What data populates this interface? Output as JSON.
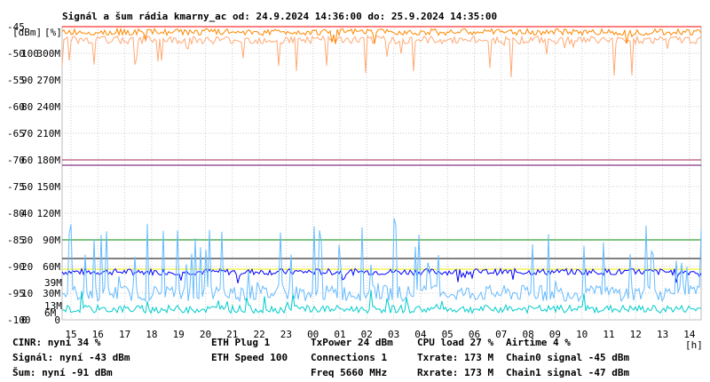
{
  "chart_data": {
    "type": "line",
    "title": "Signál a šum rádia kmarny_ac od: 24.9.2024 14:36:00 do: 25.9.2024 14:35:00",
    "y_axis_left": {
      "unit": "[dBm]",
      "range": [
        -100,
        -45
      ],
      "ticks": [
        "-45",
        "-50",
        "-55",
        "-60",
        "-65",
        "-70",
        "-75",
        "-80",
        "-85",
        "-90",
        "-95",
        "-100"
      ]
    },
    "y_axis_mid": {
      "unit": "[%]",
      "range": [
        0,
        100
      ],
      "ticks": [
        "100",
        "90",
        "80",
        "70",
        "60",
        "50",
        "40",
        "30",
        "20",
        "10",
        "0"
      ]
    },
    "y_axis_right": {
      "range": [
        0,
        330
      ],
      "ticks": [
        "300M",
        "270M",
        "240M",
        "210M",
        "180M",
        "150M",
        "120M",
        "90M",
        "60M",
        "30M",
        "0"
      ],
      "markers": [
        {
          "label": "39M",
          "value": 39,
          "color": "#dd88dd"
        },
        {
          "label": "13M",
          "value": 13,
          "color": "#66bbff"
        },
        {
          "label": "6M",
          "value": 6,
          "color": "#aa00aa"
        }
      ]
    },
    "x_axis": {
      "unit": "[h]",
      "ticks": [
        "15",
        "16",
        "17",
        "18",
        "19",
        "20",
        "21",
        "22",
        "23",
        "00",
        "01",
        "02",
        "03",
        "04",
        "05",
        "06",
        "07",
        "08",
        "09",
        "10",
        "11",
        "12",
        "13",
        "14"
      ]
    },
    "grid": true,
    "series": [
      {
        "name": "CINR",
        "color": "#00dd00",
        "current": "34 %"
      },
      {
        "name": "Signál",
        "color": "#ff0000",
        "current": "-43 dBm"
      },
      {
        "name": "Šum",
        "color": "#0000ff",
        "current": "-91 dBm"
      },
      {
        "name": "ETH Plug",
        "color": "#eeee00",
        "current": "1"
      },
      {
        "name": "ETH Speed",
        "color": "#eeee00",
        "current": "100"
      },
      {
        "name": "TxPower",
        "color": "#000000",
        "current": "24 dBm"
      },
      {
        "name": "Connections",
        "color": "#008800",
        "current": "1"
      },
      {
        "name": "Freq",
        "color": "#aa2255",
        "current": "5660 MHz"
      },
      {
        "name": "CPU load",
        "color": "#66bbff",
        "current": "27 %"
      },
      {
        "name": "Txrate",
        "color": "#dd88dd",
        "current": "173 M"
      },
      {
        "name": "Rxrate",
        "color": "#660066",
        "current": "173 M"
      },
      {
        "name": "Airtime",
        "color": "#00cccc",
        "current": "4 %"
      },
      {
        "name": "Chain0 signal",
        "color": "#ff8800",
        "current": "-45 dBm"
      },
      {
        "name": "Chain1 signal",
        "color": "#ffaa77",
        "current": "-47 dBm"
      }
    ],
    "reference_lines": [
      {
        "series": "TxPower",
        "value_dbm": -88.5
      },
      {
        "series": "Connections",
        "value_dbm": -85
      },
      {
        "series": "Freq",
        "value_dbm": -70
      },
      {
        "series": "Rxrate",
        "value_dbm": -71
      },
      {
        "series": "ETH Speed",
        "value_dbm": -90.5
      }
    ]
  },
  "legend": {
    "rows": [
      [
        {
          "label": "CINR: nyní 34 %",
          "color": "#00dd00"
        },
        {
          "label": "ETH Plug 1",
          "color": "#eeee00"
        },
        {
          "label": "TxPower 24 dBm",
          "color": "#000000"
        },
        {
          "label": "CPU load 27 %",
          "color": "#66bbff"
        },
        {
          "label": "Airtime 4 %",
          "color": "#00cccc"
        }
      ],
      [
        {
          "label": "Signál: nyní -43 dBm",
          "color": "#ff0000"
        },
        {
          "label": "ETH Speed 100",
          "color": "#eeee00"
        },
        {
          "label": "Connections 1",
          "color": "#008800"
        },
        {
          "label": "Txrate: 173 M",
          "color": "#dd88dd"
        },
        {
          "label": "Chain0 signal -45 dBm",
          "color": "#ff8800"
        }
      ],
      [
        {
          "label": "Šum: nyní -91 dBm",
          "color": "#0000ff"
        },
        {
          "label": "",
          "color": "#000000"
        },
        {
          "label": "Freq 5660 MHz",
          "color": "#aa2255"
        },
        {
          "label": "Rxrate: 173 M",
          "color": "#660066"
        },
        {
          "label": "Chain1 signal -47 dBm",
          "color": "#ffaa77"
        }
      ]
    ]
  }
}
